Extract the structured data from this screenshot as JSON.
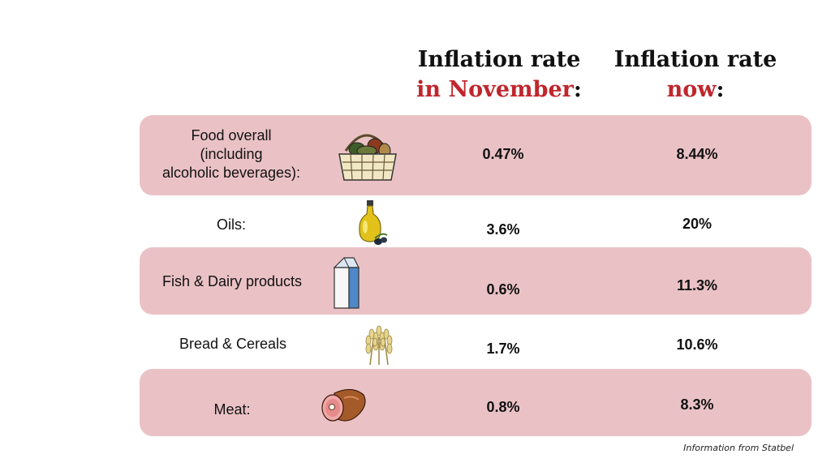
{
  "header": {
    "col1_line1": "Inflation rate",
    "col1_line2_highlight": "in November",
    "col1_line2_suffix": ":",
    "col2_line1": "Inflation rate",
    "col2_line2_highlight": "now",
    "col2_line2_suffix": ":"
  },
  "rows": [
    {
      "label_lines": [
        "Food overall",
        "(including",
        "alcoholic beverages):"
      ],
      "icon": "basket-icon",
      "november": "0.47%",
      "now": "8.44%"
    },
    {
      "label_lines": [
        "Oils:"
      ],
      "icon": "oil-bottle-icon",
      "november": "3.6%",
      "now": "20%"
    },
    {
      "label_lines": [
        "Fish & Dairy products"
      ],
      "icon": "milk-carton-icon",
      "november": "0.6%",
      "now": "11.3%"
    },
    {
      "label_lines": [
        "Bread & Cereals"
      ],
      "icon": "wheat-icon",
      "november": "1.7%",
      "now": "10.6%"
    },
    {
      "label_lines": [
        "Meat:"
      ],
      "icon": "ham-icon",
      "november": "0.8%",
      "now": "8.3%"
    }
  ],
  "source": "Information from Statbel",
  "colors": {
    "highlight": "#c0262d",
    "row_shade": "#eac2c5"
  },
  "chart_data": {
    "type": "table",
    "columns": [
      "Inflation rate in November:",
      "Inflation rate now:"
    ],
    "categories": [
      "Food overall (including alcoholic beverages):",
      "Oils:",
      "Fish & Dairy products",
      "Bread & Cereals",
      "Meat:"
    ],
    "series": [
      {
        "name": "Inflation rate in November:",
        "values": [
          0.47,
          3.6,
          0.6,
          1.7,
          0.8
        ]
      },
      {
        "name": "Inflation rate now:",
        "values": [
          8.44,
          20,
          11.3,
          10.6,
          8.3
        ]
      }
    ],
    "unit": "%"
  }
}
